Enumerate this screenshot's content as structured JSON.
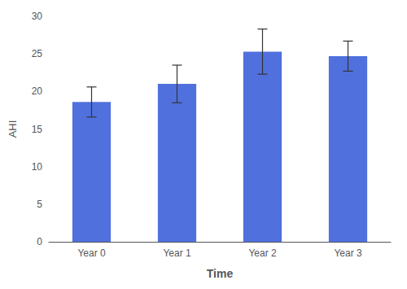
{
  "chart_data": {
    "type": "bar",
    "xlabel": "Time",
    "ylabel": "AHI",
    "categories": [
      "Year 0",
      "Year 1",
      "Year 2",
      "Year 3"
    ],
    "values": [
      18.6,
      21.0,
      25.3,
      24.7
    ],
    "errors": [
      2.0,
      2.5,
      3.0,
      2.0
    ],
    "ylim": [
      0,
      30
    ],
    "yticks": [
      0,
      5,
      10,
      15,
      20,
      25,
      30
    ],
    "grid": false
  }
}
